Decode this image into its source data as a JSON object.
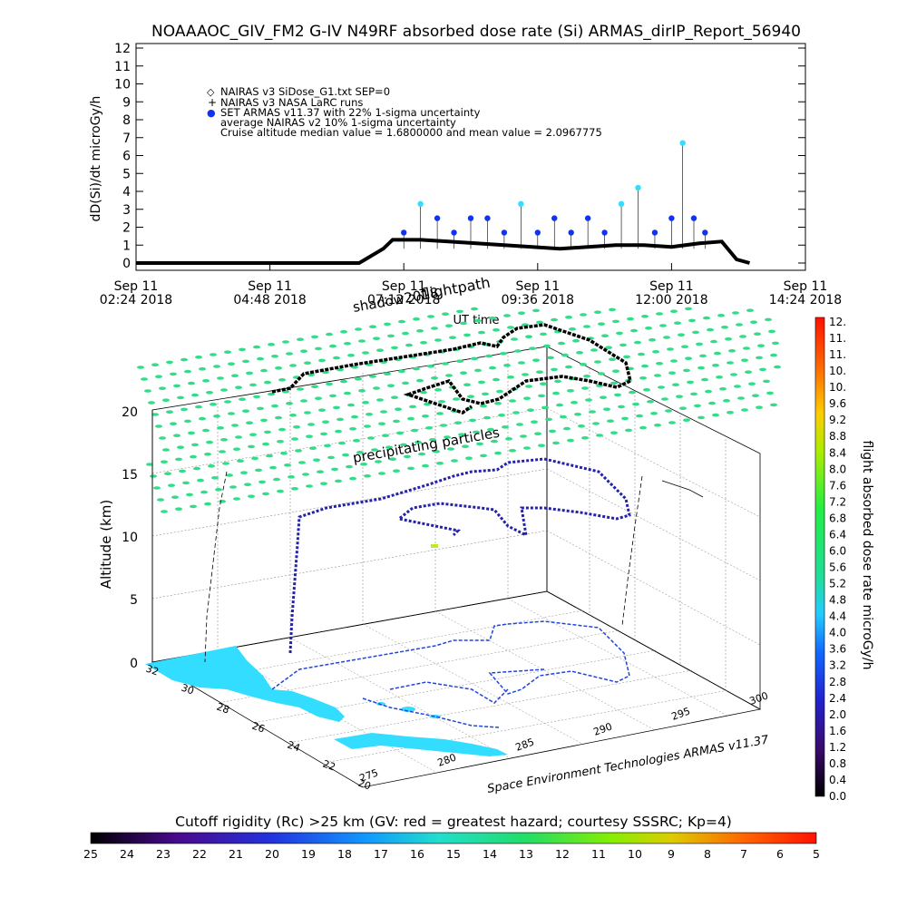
{
  "title": "NOAAAOC_GIV_FM2 G-IV    N49RF  absorbed dose rate (Si) ARMAS_dirIP_Report_56940",
  "top_chart": {
    "ylabel": "dD(Si)/dt microGy/h",
    "xlabel": "UT time",
    "y_ticks": [
      "0",
      "1",
      "2",
      "3",
      "4",
      "5",
      "6",
      "7",
      "8",
      "9",
      "10",
      "11",
      "12"
    ],
    "x_ticks": [
      {
        "date": "Sep 11",
        "time": "02:24 2018"
      },
      {
        "date": "Sep 11",
        "time": "04:48 2018"
      },
      {
        "date": "Sep 11",
        "time": "07:12 2018"
      },
      {
        "date": "Sep 11",
        "time": "09:36 2018"
      },
      {
        "date": "Sep 11",
        "time": "12:00 2018"
      },
      {
        "date": "Sep 11",
        "time": "14:24 2018"
      }
    ],
    "legend": [
      {
        "symbol": "◇",
        "text": "NAIRAS v3 SiDose_G1.txt SEP=0"
      },
      {
        "symbol": "+",
        "text": "NAIRAS v3 NASA LaRC runs"
      },
      {
        "symbol": "●",
        "text": "SET ARMAS v11.37 with 22% 1-sigma uncertainty"
      },
      {
        "symbol": "",
        "text": "average NAIRAS v2 10% 1-sigma uncertainty"
      },
      {
        "symbol": "",
        "text": "Cruise altitude median value = 1.6800000 and mean value = 2.0967775"
      }
    ]
  },
  "chart_data": {
    "type": "scatter",
    "x_axis": "UT time, Sep 11 2018",
    "x_range": [
      "02:24",
      "14:24"
    ],
    "ylim": [
      0,
      12
    ],
    "series": [
      {
        "name": "SET ARMAS v11.37 with 22% 1-sigma uncertainty",
        "x": [
          "07:12",
          "07:30",
          "07:48",
          "08:06",
          "08:24",
          "08:42",
          "09:00",
          "09:18",
          "09:36",
          "09:54",
          "10:12",
          "10:30",
          "10:48",
          "11:06",
          "11:24",
          "11:42",
          "12:00",
          "12:12",
          "12:24",
          "12:36"
        ],
        "y": [
          1.7,
          3.3,
          2.5,
          1.7,
          2.5,
          2.5,
          1.7,
          3.3,
          1.7,
          2.5,
          1.7,
          2.5,
          1.7,
          3.3,
          4.2,
          1.7,
          2.5,
          6.7,
          2.5,
          1.7
        ]
      },
      {
        "name": "NAIRAS v3 SiDose_G1.txt SEP=0",
        "x": [
          "02:24",
          "04:12",
          "06:24",
          "06:50",
          "07:00",
          "07:30",
          "08:00",
          "08:30",
          "09:00",
          "09:30",
          "10:00",
          "10:30",
          "11:00",
          "11:30",
          "12:00",
          "12:30",
          "12:54",
          "13:10",
          "13:24"
        ],
        "y": [
          0,
          0,
          0,
          0.8,
          1.3,
          1.3,
          1.2,
          1.1,
          1.0,
          0.9,
          0.8,
          0.9,
          1.0,
          1.0,
          0.9,
          1.1,
          1.2,
          0.2,
          0
        ]
      }
    ],
    "annotations": [
      "Cruise altitude median value = 1.6800000 and mean value = 2.0967775"
    ]
  },
  "plot3d": {
    "zlabel": "Altitude (km)",
    "z_ticks": [
      "0",
      "5",
      "10",
      "15",
      "20"
    ],
    "lat_ticks": [
      "32",
      "30",
      "28",
      "26",
      "24",
      "22",
      "20"
    ],
    "lon_ticks": [
      "275",
      "280",
      "285",
      "290",
      "295",
      "300"
    ],
    "labels": {
      "flightpath": "flightpath",
      "shadow": "shadow2018",
      "precip": "precipitating particles",
      "credit": "Space Environment Technologies ARMAS v11.37"
    }
  },
  "colorbar": {
    "label": "flight absorbed dose rate microGy/h",
    "ticks": [
      "12.",
      "11.",
      "11.",
      "10.",
      "10.",
      "9.6",
      "9.2",
      "8.8",
      "8.4",
      "8.0",
      "7.6",
      "7.2",
      "6.8",
      "6.4",
      "6.0",
      "5.6",
      "5.2",
      "4.8",
      "4.4",
      "4.0",
      "3.6",
      "3.2",
      "2.8",
      "2.4",
      "2.0",
      "1.6",
      "1.2",
      "0.8",
      "0.4",
      "0.0"
    ]
  },
  "cutoff": {
    "title": "Cutoff rigidity (Rc) >25 km (GV: red = greatest hazard; courtesy SSSRC; Kp=4)",
    "ticks": [
      "25",
      "24",
      "23",
      "22",
      "21",
      "20",
      "19",
      "18",
      "17",
      "16",
      "15",
      "14",
      "13",
      "12",
      "11",
      "10",
      "9",
      "8",
      "7",
      "6",
      "5"
    ]
  },
  "colors": {
    "armas": "#1133ee",
    "armas_high": "#33ddff",
    "nairas": "#000000",
    "land": "#33ddff",
    "precip": "#33dd88"
  }
}
